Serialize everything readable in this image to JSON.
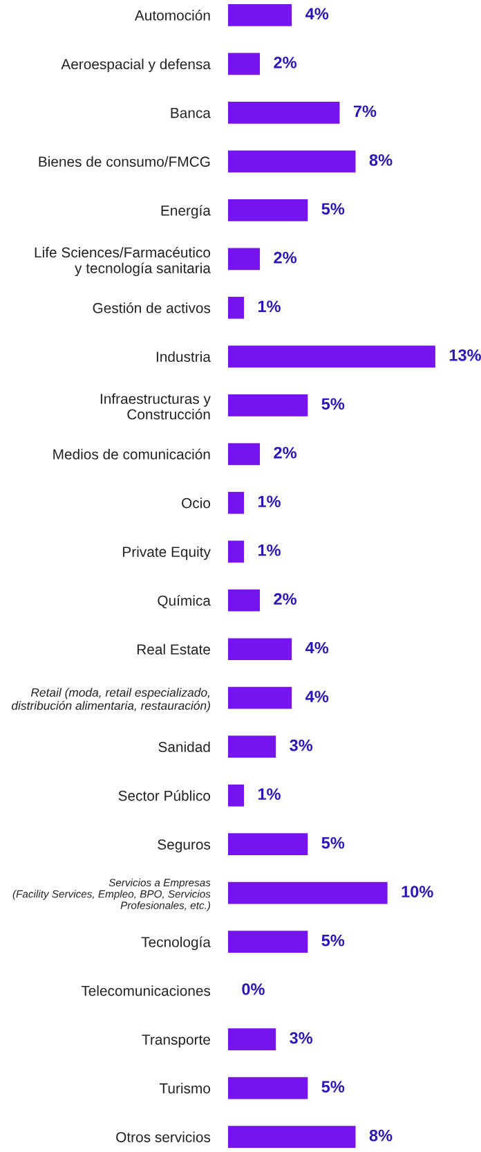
{
  "chart_data": {
    "type": "bar",
    "orientation": "horizontal",
    "grid": false,
    "legend": false,
    "categories": [
      "Automoción",
      "Aeroespacial y defensa",
      "Banca",
      "Bienes de consumo/FMCG",
      "Energía",
      "Life Sciences/Farmacéutico\ny tecnología sanitaria",
      "Gestión de activos",
      "Industria",
      "Infraestructuras y\nConstrucción",
      "Medios de comunicación",
      "Ocio",
      "Private Equity",
      "Química",
      "Real Estate",
      "Retail (moda, retail especializado,\ndistribución alimentaria, restauración)",
      "Sanidad",
      "Sector Público",
      "Seguros",
      "Servicios a Empresas\n(Facility Services, Empleo, BPO, Servicios\nProfesionales, etc.)",
      "Tecnología",
      "Telecomunicaciones",
      "Transporte",
      "Turismo",
      "Otros servicios"
    ],
    "values": [
      4,
      2,
      7,
      8,
      5,
      2,
      1,
      13,
      5,
      2,
      1,
      1,
      2,
      4,
      4,
      3,
      1,
      5,
      10,
      5,
      0,
      3,
      5,
      8
    ],
    "value_labels": [
      "4%",
      "2%",
      "7%",
      "8%",
      "5%",
      "2%",
      "1%",
      "13%",
      "5%",
      "2%",
      "1%",
      "1%",
      "2%",
      "4%",
      "4%",
      "3%",
      "1%",
      "5%",
      "10%",
      "5%",
      "0%",
      "3%",
      "5%",
      "8%"
    ],
    "color": "#7514ee"
  }
}
